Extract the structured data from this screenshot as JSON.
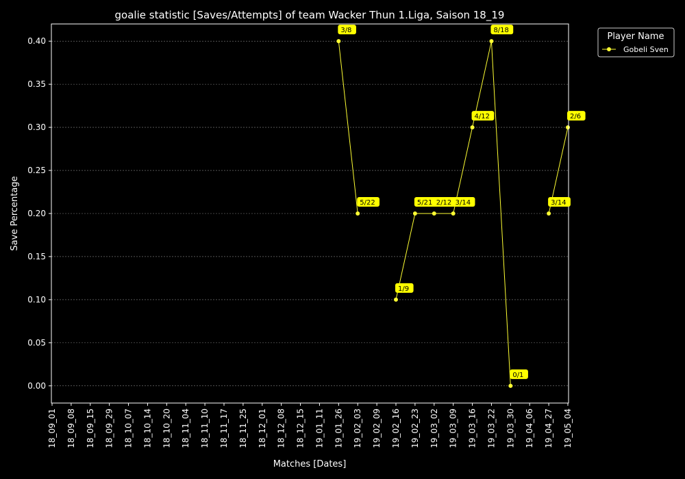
{
  "chart_data": {
    "type": "line",
    "title": "goalie statistic [Saves/Attempts] of team Wacker Thun 1.Liga, Saison 18_19",
    "xlabel": "Matches [Dates]",
    "ylabel": "Save Percentage",
    "categories": [
      "18_09_01",
      "18_09_08",
      "18_09_15",
      "18_09_29",
      "18_10_07",
      "18_10_14",
      "18_10_20",
      "18_11_04",
      "18_11_10",
      "18_11_17",
      "18_11_25",
      "18_12_01",
      "18_12_08",
      "18_12_15",
      "19_01_11",
      "19_01_26",
      "19_02_03",
      "19_02_09",
      "19_02_16",
      "19_02_23",
      "19_03_02",
      "19_03_09",
      "19_03_16",
      "19_03_22",
      "19_03_30",
      "19_04_06",
      "19_04_27",
      "19_05_04"
    ],
    "ylim": [
      -0.02,
      0.42
    ],
    "yticks": [
      0.0,
      0.05,
      0.1,
      0.15,
      0.2,
      0.25,
      0.3,
      0.35,
      0.4
    ],
    "ytick_labels": [
      "0.00",
      "0.05",
      "0.10",
      "0.15",
      "0.20",
      "0.25",
      "0.30",
      "0.35",
      "0.40"
    ],
    "grid": "horizontal",
    "legend": {
      "title": "Player Name",
      "placement": "top-right outside"
    },
    "colors": {
      "line": "#ffff33",
      "label_bg": "#ffff00",
      "background": "#000000",
      "grid": "#888888"
    },
    "series": [
      {
        "name": "Gobeli Sven",
        "values": [
          null,
          null,
          null,
          null,
          null,
          null,
          null,
          null,
          null,
          null,
          null,
          null,
          null,
          null,
          null,
          0.4,
          0.2,
          null,
          0.1,
          0.2,
          0.2,
          0.2,
          0.3,
          0.4,
          0.0,
          null,
          0.2,
          0.3
        ],
        "labels": [
          null,
          null,
          null,
          null,
          null,
          null,
          null,
          null,
          null,
          null,
          null,
          null,
          null,
          null,
          null,
          "3/8",
          "5/22",
          null,
          "1/9",
          "5/21",
          "2/12",
          "3/14",
          "4/12",
          "8/18",
          "0/1",
          null,
          "3/14",
          "2/6"
        ]
      }
    ]
  }
}
